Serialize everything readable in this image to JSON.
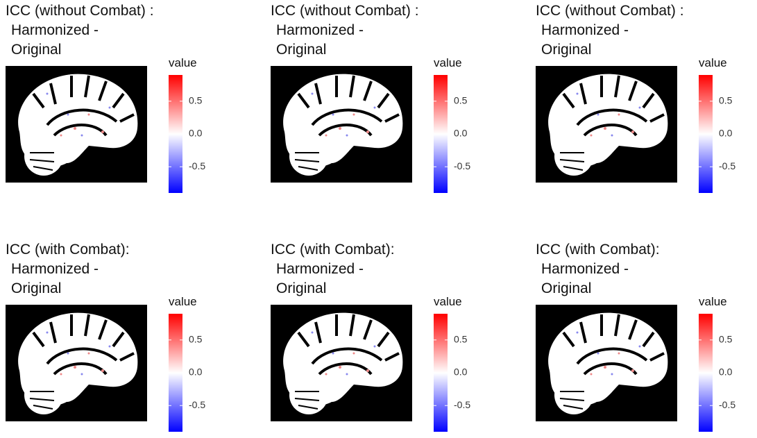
{
  "chart_data": [
    {
      "type": "heatmap",
      "title_lines": [
        "ICC (without Combat) :",
        "Harmonized -",
        "Original"
      ],
      "legend_title": "value",
      "colorbar_lim": [
        -0.9,
        0.9
      ],
      "colorbar_ticks": [
        -0.5,
        {
          "value": 0,
          "label": "0.0"
        },
        0.5
      ],
      "colors": [
        "#0000ff",
        "#ffffff",
        "#ff0000"
      ]
    },
    {
      "type": "heatmap",
      "title_lines": [
        "ICC (without Combat) :",
        "Harmonized -",
        "Original"
      ],
      "legend_title": "value",
      "colorbar_lim": [
        -0.9,
        0.9
      ],
      "colorbar_ticks": [
        -0.5,
        {
          "value": 0,
          "label": "0.0"
        },
        0.5
      ],
      "colors": [
        "#0000ff",
        "#ffffff",
        "#ff0000"
      ]
    },
    {
      "type": "heatmap",
      "title_lines": [
        "ICC (without Combat) :",
        "Harmonized -",
        "Original"
      ],
      "legend_title": "value",
      "colorbar_lim": [
        -0.9,
        0.9
      ],
      "colorbar_ticks": [
        -0.5,
        {
          "value": 0,
          "label": "0.0"
        },
        0.5
      ],
      "colors": [
        "#0000ff",
        "#ffffff",
        "#ff0000"
      ]
    },
    {
      "type": "heatmap",
      "title_lines": [
        "ICC (with Combat):",
        "Harmonized -",
        "Original"
      ],
      "legend_title": "value",
      "colorbar_lim": [
        -0.9,
        0.9
      ],
      "colorbar_ticks": [
        -0.5,
        {
          "value": 0,
          "label": "0.0"
        },
        0.5
      ],
      "colors": [
        "#0000ff",
        "#ffffff",
        "#ff0000"
      ]
    },
    {
      "type": "heatmap",
      "title_lines": [
        "ICC (with Combat):",
        "Harmonized -",
        "Original"
      ],
      "legend_title": "value",
      "colorbar_lim": [
        -0.9,
        0.9
      ],
      "colorbar_ticks": [
        -0.5,
        {
          "value": 0,
          "label": "0.0"
        },
        0.5
      ],
      "colors": [
        "#0000ff",
        "#ffffff",
        "#ff0000"
      ]
    },
    {
      "type": "heatmap",
      "title_lines": [
        "ICC (with Combat):",
        "Harmonized -",
        "Original"
      ],
      "legend_title": "value",
      "colorbar_lim": [
        -0.9,
        0.9
      ],
      "colorbar_ticks": [
        -0.5,
        {
          "value": 0,
          "label": "0.0"
        },
        0.5
      ],
      "colors": [
        "#0000ff",
        "#ffffff",
        "#ff0000"
      ]
    }
  ]
}
